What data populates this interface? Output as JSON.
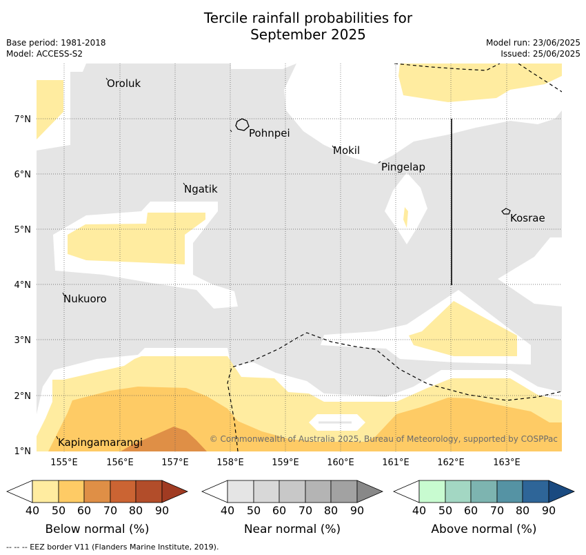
{
  "header": {
    "title_line1": "Tercile rainfall probabilities for",
    "title_line2": "September 2025",
    "base_period": "Base period: 1981-2018",
    "model": "Model: ACCESS-S2",
    "model_run": "Model run: 23/06/2025",
    "issued": "Issued: 25/06/2025"
  },
  "map": {
    "lon_labels": [
      "155°E",
      "156°E",
      "157°E",
      "158°E",
      "159°E",
      "160°E",
      "161°E",
      "162°E",
      "163°E"
    ],
    "lat_labels": [
      "7°N",
      "6°N",
      "5°N",
      "4°N",
      "3°N",
      "2°N",
      "1°N"
    ],
    "places": [
      "Oroluk",
      "Pohnpei",
      "Mokil",
      "Pingelap",
      "Ngatik",
      "Kosrae",
      "Nukuoro",
      "Kapingamarangi"
    ],
    "copyright": "© Commonwealth of Australia 2025, Bureau of Meteorology, supported by COSPPac",
    "colors": {
      "near_normal_fill": "#e5e5e5",
      "below_40_50": "#ffeca0",
      "below_50_60": "#fecb65",
      "below_60_70": "#df8f46"
    }
  },
  "legends": [
    {
      "title": "Below normal (%)",
      "ticks": [
        "40",
        "50",
        "60",
        "70",
        "80",
        "90"
      ],
      "colors": [
        "#ffffff",
        "#ffeca0",
        "#fecb65",
        "#df8f46",
        "#cb6433",
        "#b24d2a",
        "#a03b22"
      ]
    },
    {
      "title": "Near normal (%)",
      "ticks": [
        "40",
        "50",
        "60",
        "70",
        "80",
        "90"
      ],
      "colors": [
        "#ffffff",
        "#e5e5e5",
        "#d8d8d8",
        "#c8c8c8",
        "#b4b4b4",
        "#a2a2a2",
        "#888888"
      ]
    },
    {
      "title": "Above normal (%)",
      "ticks": [
        "40",
        "50",
        "60",
        "70",
        "80",
        "90"
      ],
      "colors": [
        "#ffffff",
        "#c8fbd0",
        "#a3d7c3",
        "#7db4b0",
        "#5593a4",
        "#2e6598",
        "#1a4a80"
      ]
    }
  ],
  "footer": "-- -- -- EEZ border V11 (Flanders Marine Institute, 2019)."
}
